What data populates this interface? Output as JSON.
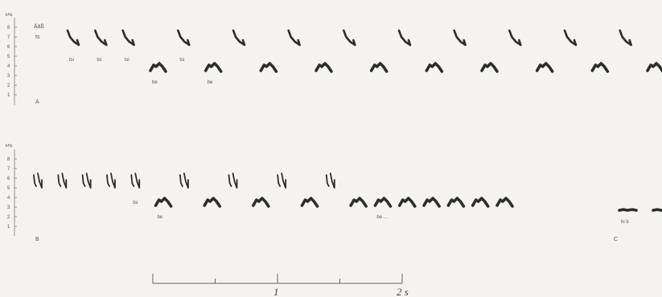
{
  "axes": {
    "unit": "kHz",
    "ticks": [
      "8",
      "7",
      "6",
      "5",
      "4",
      "3",
      "2",
      "1"
    ]
  },
  "panel_a": {
    "label": "A",
    "header_top": "Ääß",
    "header_sub": "ts",
    "syllables": [
      {
        "type": "down",
        "label": "tsi"
      },
      {
        "type": "down",
        "label": "tsi"
      },
      {
        "type": "down",
        "label": "tsi"
      },
      {
        "type": "arch",
        "label": "be"
      },
      {
        "type": "down",
        "label": "tsi"
      },
      {
        "type": "arch",
        "label": "be"
      },
      {
        "type": "down",
        "label": ""
      },
      {
        "type": "arch",
        "label": ""
      },
      {
        "type": "down",
        "label": ""
      },
      {
        "type": "arch",
        "label": ""
      },
      {
        "type": "down",
        "label": ""
      },
      {
        "type": "arch",
        "label": ""
      },
      {
        "type": "down",
        "label": ""
      },
      {
        "type": "arch",
        "label": ""
      },
      {
        "type": "down",
        "label": ""
      },
      {
        "type": "arch",
        "label": ""
      },
      {
        "type": "down",
        "label": ""
      },
      {
        "type": "arch",
        "label": ""
      },
      {
        "type": "down",
        "label": ""
      },
      {
        "type": "arch",
        "label": ""
      },
      {
        "type": "down",
        "label": ""
      },
      {
        "type": "arch",
        "label": ""
      }
    ]
  },
  "panel_b": {
    "label": "B",
    "syllables": [
      {
        "type": "double",
        "label": ""
      },
      {
        "type": "double",
        "label": ""
      },
      {
        "type": "double",
        "label": ""
      },
      {
        "type": "double",
        "label": ""
      },
      {
        "type": "double",
        "label": "tsi"
      },
      {
        "type": "arch",
        "label": "be"
      },
      {
        "type": "double",
        "label": ""
      },
      {
        "type": "arch",
        "label": ""
      },
      {
        "type": "double",
        "label": ""
      },
      {
        "type": "arch",
        "label": ""
      },
      {
        "type": "double",
        "label": ""
      },
      {
        "type": "arch",
        "label": ""
      },
      {
        "type": "double",
        "label": ""
      },
      {
        "type": "arch",
        "label": ""
      },
      {
        "type": "arch",
        "label": "be ..."
      },
      {
        "type": "arch",
        "label": ""
      },
      {
        "type": "arch",
        "label": ""
      },
      {
        "type": "arch",
        "label": ""
      },
      {
        "type": "arch",
        "label": ""
      },
      {
        "type": "arch",
        "label": ""
      }
    ]
  },
  "panel_c": {
    "label": "C",
    "syllables": [
      {
        "type": "flat",
        "label": "hi b"
      },
      {
        "type": "flat",
        "label": ""
      }
    ]
  },
  "time_scale": {
    "labels": [
      "1",
      "2 s"
    ],
    "span_seconds": 2,
    "minor_step_seconds": 0.5
  },
  "colors": {
    "background": "#f4f3ef",
    "ink": "#2d2d2d"
  }
}
